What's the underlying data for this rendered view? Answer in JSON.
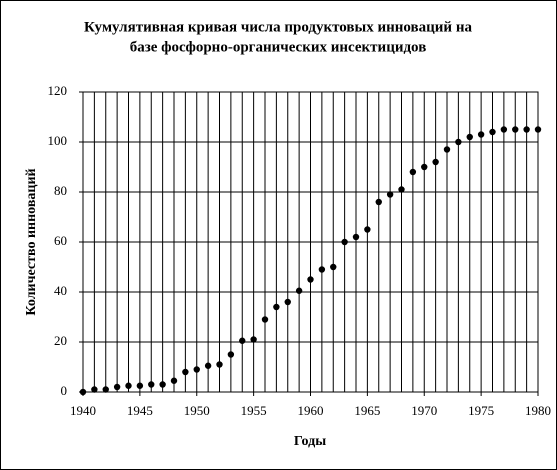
{
  "chart_data": {
    "type": "scatter",
    "title": [
      "Кумулятивная кривая числа продуктовых инноваций на",
      "базе фосфорно-органических инсектицидов"
    ],
    "x_label": "Годы",
    "y_label": "Количество инноваций",
    "x": [
      1940,
      1941,
      1942,
      1943,
      1944,
      1945,
      1946,
      1947,
      1948,
      1949,
      1950,
      1951,
      1952,
      1953,
      1954,
      1955,
      1956,
      1957,
      1958,
      1959,
      1960,
      1961,
      1962,
      1963,
      1964,
      1965,
      1966,
      1967,
      1968,
      1969,
      1970,
      1971,
      1972,
      1973,
      1974,
      1975,
      1976,
      1977,
      1978,
      1979,
      1980
    ],
    "values": [
      0,
      1,
      1,
      2,
      2.5,
      2.5,
      3,
      3,
      4.5,
      8,
      9,
      10.5,
      11,
      15,
      20.5,
      21,
      29,
      34,
      36,
      40.5,
      45,
      49,
      50,
      60,
      62,
      65,
      76,
      79,
      81,
      88,
      90,
      92,
      97,
      100,
      102,
      103,
      104,
      105,
      105,
      105,
      105
    ],
    "color": "#000000",
    "xlim": [
      1940,
      1980
    ],
    "xticks": [
      1940,
      1945,
      1950,
      1955,
      1960,
      1965,
      1970,
      1975,
      1980
    ],
    "ylim": [
      0,
      120
    ],
    "yticks": [
      0,
      20,
      40,
      60,
      80,
      100,
      120
    ],
    "grid": true
  }
}
